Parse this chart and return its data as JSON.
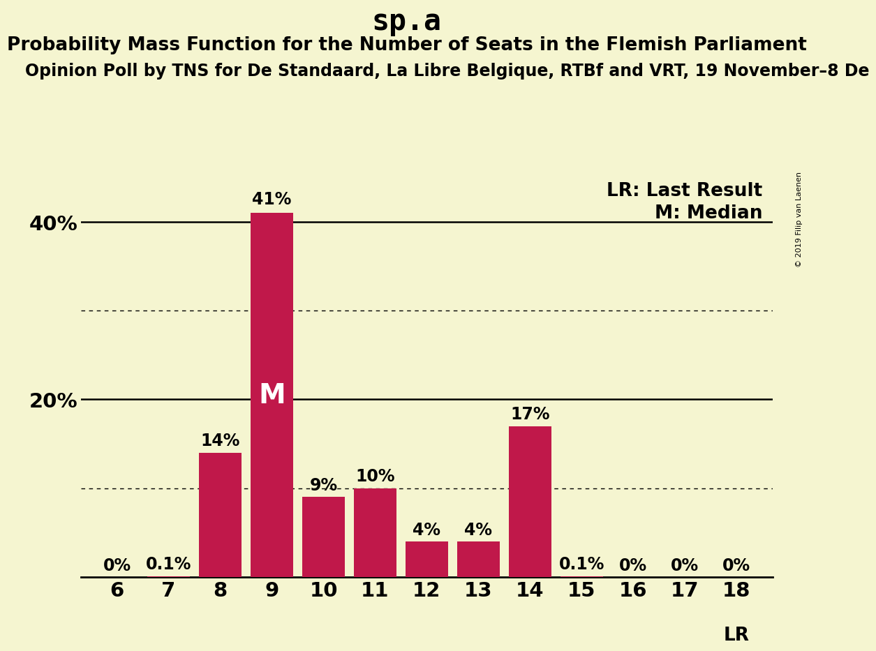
{
  "title": "sp.a",
  "subtitle": "Probability Mass Function for the Number of Seats in the Flemish Parliament",
  "subtitle2": "Opinion Poll by TNS for De Standaard, La Libre Belgique, RTBf and VRT, 19 November–8 De",
  "copyright": "© 2019 Filip van Laenen",
  "seats": [
    6,
    7,
    8,
    9,
    10,
    11,
    12,
    13,
    14,
    15,
    16,
    17,
    18
  ],
  "probabilities": [
    0.0,
    0.1,
    14.0,
    41.0,
    9.0,
    10.0,
    4.0,
    4.0,
    17.0,
    0.1,
    0.0,
    0.0,
    0.0
  ],
  "bar_labels": [
    "0%",
    "0.1%",
    "14%",
    "41%",
    "9%",
    "10%",
    "4%",
    "4%",
    "17%",
    "0.1%",
    "0%",
    "0%",
    "0%"
  ],
  "bar_color": "#C0184A",
  "background_color": "#F5F5D0",
  "median_seat": 9,
  "lr_seat": 18,
  "ylim": [
    0,
    45
  ],
  "solid_line_y": [
    20,
    40
  ],
  "dotted_line_y": [
    10,
    30
  ],
  "lr_label": "LR: Last Result",
  "median_label": "M: Median",
  "lr_bar_label": "LR",
  "median_bar_label": "M",
  "title_fontsize": 30,
  "subtitle_fontsize": 19,
  "subtitle2_fontsize": 17,
  "bar_label_fontsize": 17,
  "axis_tick_fontsize": 21,
  "ytick_label_fontsize": 21,
  "legend_fontsize": 19,
  "median_M_fontsize": 28
}
